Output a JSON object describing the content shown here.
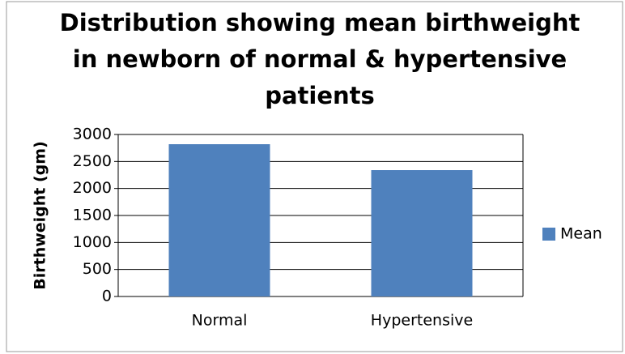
{
  "chart_data": {
    "type": "bar",
    "title": [
      "Distribution showing mean birthweight",
      "in newborn of normal & hypertensive",
      "patients"
    ],
    "y_label": "Birthweight  (gm)",
    "categories": [
      "Normal",
      "Hypertensive"
    ],
    "series": [
      {
        "name": "Mean",
        "color": "#4f81bd",
        "values": [
          2820,
          2340
        ]
      }
    ],
    "ylim": [
      0,
      3000
    ],
    "yticks": [
      0,
      500,
      1000,
      1500,
      2000,
      2500,
      3000
    ],
    "grid": true,
    "legend": "right"
  }
}
